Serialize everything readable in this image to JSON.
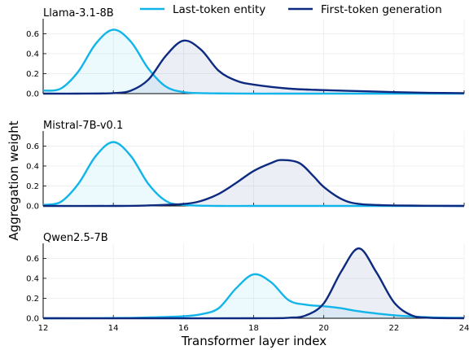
{
  "chart_data": {
    "type": "area",
    "xlabel": "Transformer layer index",
    "ylabel": "Aggregation weight",
    "xlim": [
      12,
      24
    ],
    "ylim": [
      0,
      0.75
    ],
    "x_ticks": [
      "12",
      "14",
      "16",
      "18",
      "20",
      "22",
      "24"
    ],
    "y_ticks": [
      "0.0",
      "0.2",
      "0.4",
      "0.6"
    ],
    "grid": true,
    "legend_position": "top",
    "legend": [
      {
        "name": "Last-token entity",
        "color": "#12b5ea"
      },
      {
        "name": "First-token generation",
        "color": "#0d2a80"
      }
    ],
    "panels": [
      {
        "title": "Llama-3.1-8B",
        "series": [
          {
            "name": "Last-token entity",
            "color": "#12b5ea",
            "x": [
              12,
              12.5,
              13,
              13.5,
              14,
              14.5,
              15,
              15.5,
              16,
              16.5,
              17,
              18,
              19,
              20,
              22,
              24
            ],
            "y": [
              0.03,
              0.05,
              0.22,
              0.5,
              0.64,
              0.52,
              0.25,
              0.07,
              0.015,
              0.005,
              0.002,
              0,
              0,
              0,
              0,
              0
            ]
          },
          {
            "name": "First-token generation",
            "color": "#0d2a80",
            "x": [
              12,
              13,
              14,
              14.5,
              15,
              15.5,
              16,
              16.5,
              17,
              17.5,
              18,
              19,
              20,
              21,
              22,
              23,
              24
            ],
            "y": [
              0,
              0,
              0.005,
              0.03,
              0.14,
              0.38,
              0.53,
              0.44,
              0.23,
              0.13,
              0.09,
              0.05,
              0.035,
              0.025,
              0.015,
              0.008,
              0.005
            ]
          }
        ]
      },
      {
        "title": "Mistral-7B-v0.1",
        "series": [
          {
            "name": "Last-token entity",
            "color": "#12b5ea",
            "x": [
              12,
              12.5,
              13,
              13.5,
              14,
              14.5,
              15,
              15.5,
              16,
              17,
              18,
              20,
              24
            ],
            "y": [
              0.01,
              0.04,
              0.22,
              0.5,
              0.64,
              0.5,
              0.22,
              0.05,
              0.01,
              0,
              0,
              0,
              0
            ]
          },
          {
            "name": "First-token generation",
            "color": "#0d2a80",
            "x": [
              12,
              14,
              15,
              16,
              16.5,
              17,
              17.5,
              18,
              18.5,
              18.8,
              19.3,
              19.7,
              20,
              20.5,
              21,
              22,
              24
            ],
            "y": [
              0,
              0,
              0.005,
              0.02,
              0.05,
              0.12,
              0.23,
              0.35,
              0.43,
              0.46,
              0.43,
              0.3,
              0.19,
              0.07,
              0.02,
              0.005,
              0
            ]
          }
        ]
      },
      {
        "title": "Qwen2.5-7B",
        "series": [
          {
            "name": "Last-token entity",
            "color": "#12b5ea",
            "x": [
              12,
              14,
              15,
              16,
              16.5,
              17,
              17.5,
              18,
              18.5,
              19,
              19.5,
              20,
              20.5,
              21,
              22,
              23,
              24
            ],
            "y": [
              0,
              0.002,
              0.008,
              0.02,
              0.04,
              0.1,
              0.3,
              0.44,
              0.36,
              0.18,
              0.135,
              0.12,
              0.1,
              0.07,
              0.03,
              0.01,
              0.004
            ]
          },
          {
            "name": "First-token generation",
            "color": "#0d2a80",
            "x": [
              12,
              18,
              19,
              19.5,
              20,
              20.5,
              21,
              21.5,
              22,
              22.5,
              23,
              24
            ],
            "y": [
              0,
              0,
              0.005,
              0.03,
              0.15,
              0.47,
              0.7,
              0.46,
              0.16,
              0.03,
              0.005,
              0
            ]
          }
        ]
      }
    ]
  }
}
